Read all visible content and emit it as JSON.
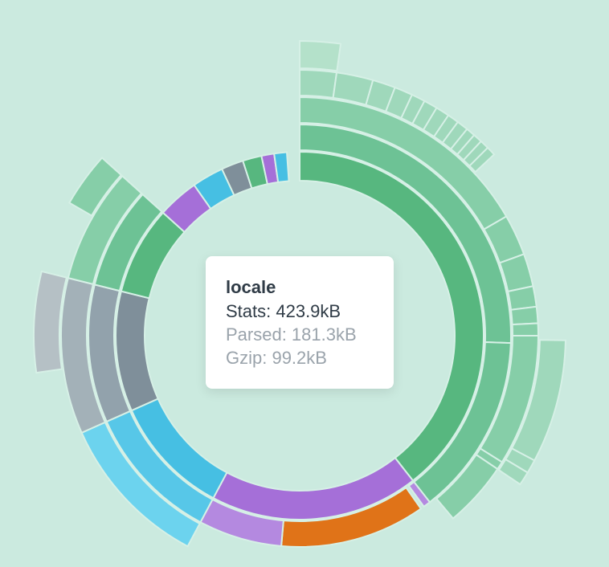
{
  "tooltip": {
    "title": "locale",
    "stats": "Stats: 423.9kB",
    "parsed": "Parsed: 181.3kB",
    "gzip": "Gzip: 99.2kB"
  },
  "colors": {
    "background": "#cbeadf",
    "green_1": "#57b77f",
    "green_2": "#6dc295",
    "green_3": "#86cea8",
    "green_4": "#9fd8bb",
    "green_5": "#b4e1ca",
    "purple_1": "#a56fd8",
    "purple_2": "#b489e0",
    "orange": "#e07318",
    "blue_1": "#46bfe3",
    "blue_2": "#57c7e8",
    "blue_3": "#6cd3ee",
    "slate_1": "#7f8f9a",
    "slate_2": "#92a2ac",
    "slate_3": "#a3b1b8",
    "slate_4": "#b5c0c5"
  },
  "chart_data": {
    "type": "sunburst",
    "title": "",
    "segments": [
      {
        "ring": 1,
        "start_deg": 0,
        "end_deg": 142,
        "color": "green_1"
      },
      {
        "ring": 1,
        "start_deg": 142,
        "end_deg": 208,
        "color": "purple_1"
      },
      {
        "ring": 1,
        "start_deg": 208,
        "end_deg": 246,
        "color": "blue_1"
      },
      {
        "ring": 1,
        "start_deg": 246,
        "end_deg": 284,
        "color": "slate_1"
      },
      {
        "ring": 1,
        "start_deg": 284,
        "end_deg": 312,
        "color": "green_1"
      },
      {
        "ring": 1,
        "start_deg": 312,
        "end_deg": 325,
        "color": "purple_1"
      },
      {
        "ring": 1,
        "start_deg": 325,
        "end_deg": 335,
        "color": "blue_1"
      },
      {
        "ring": 1,
        "start_deg": 335,
        "end_deg": 342,
        "color": "slate_1"
      },
      {
        "ring": 1,
        "start_deg": 342,
        "end_deg": 348,
        "color": "green_1"
      },
      {
        "ring": 1,
        "start_deg": 348,
        "end_deg": 352,
        "color": "purple_1"
      },
      {
        "ring": 1,
        "start_deg": 352,
        "end_deg": 356,
        "color": "blue_1"
      },
      {
        "ring": 2,
        "start_deg": 0,
        "end_deg": 92,
        "color": "green_2"
      },
      {
        "ring": 2,
        "start_deg": 92,
        "end_deg": 142,
        "color": "green_2"
      },
      {
        "ring": 2,
        "start_deg": 142,
        "end_deg": 144,
        "color": "purple_2"
      },
      {
        "ring": 2,
        "start_deg": 145,
        "end_deg": 185,
        "color": "orange"
      },
      {
        "ring": 2,
        "start_deg": 185,
        "end_deg": 208,
        "color": "purple_2"
      },
      {
        "ring": 2,
        "start_deg": 208,
        "end_deg": 246,
        "color": "blue_2"
      },
      {
        "ring": 2,
        "start_deg": 246,
        "end_deg": 284,
        "color": "slate_2"
      },
      {
        "ring": 2,
        "start_deg": 284,
        "end_deg": 312,
        "color": "green_2"
      },
      {
        "ring": 3,
        "start_deg": 0,
        "end_deg": 60,
        "color": "green_3"
      },
      {
        "ring": 3,
        "start_deg": 60,
        "end_deg": 70,
        "color": "green_3"
      },
      {
        "ring": 3,
        "start_deg": 70,
        "end_deg": 78,
        "color": "green_3"
      },
      {
        "ring": 3,
        "start_deg": 78,
        "end_deg": 83,
        "color": "green_3"
      },
      {
        "ring": 3,
        "start_deg": 83,
        "end_deg": 87,
        "color": "green_3"
      },
      {
        "ring": 3,
        "start_deg": 87,
        "end_deg": 90,
        "color": "green_3"
      },
      {
        "ring": 3,
        "start_deg": 90,
        "end_deg": 122,
        "color": "green_3"
      },
      {
        "ring": 3,
        "start_deg": 122,
        "end_deg": 124,
        "color": "green_3"
      },
      {
        "ring": 3,
        "start_deg": 124,
        "end_deg": 140,
        "color": "green_3"
      },
      {
        "ring": 3,
        "start_deg": 208,
        "end_deg": 246,
        "color": "blue_3"
      },
      {
        "ring": 3,
        "start_deg": 246,
        "end_deg": 284,
        "color": "slate_3"
      },
      {
        "ring": 3,
        "start_deg": 284,
        "end_deg": 312,
        "color": "green_3"
      },
      {
        "ring": 4,
        "start_deg": 0,
        "end_deg": 8,
        "color": "green_4"
      },
      {
        "ring": 4,
        "start_deg": 8,
        "end_deg": 16,
        "color": "green_4"
      },
      {
        "ring": 4,
        "start_deg": 16,
        "end_deg": 21,
        "color": "green_4"
      },
      {
        "ring": 4,
        "start_deg": 21,
        "end_deg": 25,
        "color": "green_4"
      },
      {
        "ring": 4,
        "start_deg": 25,
        "end_deg": 28,
        "color": "green_4"
      },
      {
        "ring": 4,
        "start_deg": 28,
        "end_deg": 31,
        "color": "green_4"
      },
      {
        "ring": 4,
        "start_deg": 31,
        "end_deg": 34,
        "color": "green_4"
      },
      {
        "ring": 4,
        "start_deg": 34,
        "end_deg": 36.5,
        "color": "green_4"
      },
      {
        "ring": 4,
        "start_deg": 36.5,
        "end_deg": 39,
        "color": "green_4"
      },
      {
        "ring": 4,
        "start_deg": 39,
        "end_deg": 41,
        "color": "green_4"
      },
      {
        "ring": 4,
        "start_deg": 41,
        "end_deg": 43,
        "color": "green_4"
      },
      {
        "ring": 4,
        "start_deg": 43,
        "end_deg": 45,
        "color": "green_4"
      },
      {
        "ring": 4,
        "start_deg": 45,
        "end_deg": 47,
        "color": "green_4"
      },
      {
        "ring": 4,
        "start_deg": 91,
        "end_deg": 118,
        "color": "green_4"
      },
      {
        "ring": 4,
        "start_deg": 118,
        "end_deg": 121,
        "color": "green_4"
      },
      {
        "ring": 4,
        "start_deg": 121,
        "end_deg": 124,
        "color": "green_4"
      },
      {
        "ring": 4,
        "start_deg": 262,
        "end_deg": 284,
        "color": "slate_4"
      },
      {
        "ring": 4,
        "start_deg": 300,
        "end_deg": 312,
        "color": "green_3"
      },
      {
        "ring": 5,
        "start_deg": 0,
        "end_deg": 8,
        "color": "green_5"
      }
    ]
  }
}
